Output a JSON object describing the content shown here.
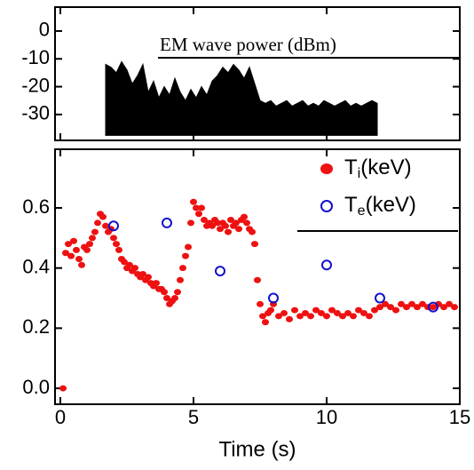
{
  "chart_data": [
    {
      "type": "area",
      "title": "EM wave power (dBm)",
      "color": "#000000",
      "x": [
        1.7,
        1.9,
        2.1,
        2.3,
        2.5,
        2.7,
        2.9,
        3.1,
        3.3,
        3.5,
        3.7,
        3.9,
        4.1,
        4.3,
        4.5,
        4.7,
        4.9,
        5.1,
        5.3,
        5.5,
        5.7,
        5.9,
        6.1,
        6.3,
        6.5,
        6.7,
        6.9,
        7.1,
        7.3,
        7.5,
        7.7,
        7.9,
        8.1,
        8.3,
        8.5,
        8.7,
        8.9,
        9.1,
        9.3,
        9.5,
        9.7,
        9.9,
        10.1,
        10.3,
        10.5,
        10.7,
        10.9,
        11.1,
        11.3,
        11.5,
        11.7,
        11.9
      ],
      "values": [
        -12,
        -13,
        -15,
        -11,
        -14,
        -19,
        -16,
        -12,
        -22,
        -18,
        -24,
        -20,
        -23,
        -17,
        -22,
        -25,
        -21,
        -24,
        -20,
        -23,
        -18,
        -16,
        -13,
        -15,
        -12,
        -14,
        -17,
        -13,
        -19,
        -25,
        -26,
        -25,
        -27,
        -26,
        -25,
        -27,
        -26,
        -25,
        -27,
        -26,
        -27,
        -25,
        -26,
        -27,
        -26,
        -25,
        -27,
        -26,
        -27,
        -26,
        -25,
        -26
      ],
      "base": -37.5,
      "xlim": [
        -0.2,
        15
      ],
      "ylim": [
        -39.3,
        8.6
      ],
      "yticks": [
        0,
        -10,
        -20,
        -30
      ]
    },
    {
      "type": "scatter",
      "xlabel": "Time (s)",
      "xlim": [
        -0.2,
        15
      ],
      "ylim": [
        -0.053,
        0.795
      ],
      "xticks": [
        0,
        5,
        10,
        15
      ],
      "yticks": [
        {
          "value": 0,
          "label": "0.0"
        },
        0.2,
        0.4,
        0.6
      ],
      "series": [
        {
          "name": "Ti(keV)",
          "color": "#ee1111",
          "marker": "filled",
          "x": [
            0.1,
            0.2,
            0.3,
            0.4,
            0.5,
            0.6,
            0.7,
            0.8,
            0.9,
            1.0,
            1.1,
            1.2,
            1.3,
            1.4,
            1.5,
            1.6,
            1.7,
            1.8,
            1.9,
            2.0,
            2.1,
            2.2,
            2.3,
            2.4,
            2.5,
            2.6,
            2.7,
            2.8,
            2.9,
            3.0,
            3.1,
            3.2,
            3.3,
            3.4,
            3.5,
            3.6,
            3.7,
            3.8,
            3.9,
            4.0,
            4.1,
            4.2,
            4.3,
            4.4,
            4.5,
            4.6,
            4.7,
            4.8,
            4.9,
            5.0,
            5.1,
            5.2,
            5.3,
            5.4,
            5.5,
            5.6,
            5.7,
            5.8,
            5.9,
            6.0,
            6.1,
            6.2,
            6.3,
            6.4,
            6.5,
            6.6,
            6.7,
            6.8,
            6.9,
            7.0,
            7.1,
            7.2,
            7.3,
            7.4,
            7.5,
            7.6,
            7.7,
            7.8,
            7.9,
            8.0,
            8.2,
            8.4,
            8.6,
            8.8,
            9.0,
            9.2,
            9.4,
            9.6,
            9.8,
            10.0,
            10.2,
            10.4,
            10.6,
            10.8,
            11.0,
            11.2,
            11.4,
            11.6,
            11.8,
            12.0,
            12.2,
            12.4,
            12.6,
            12.8,
            13.0,
            13.2,
            13.4,
            13.6,
            13.8,
            14.0,
            14.2,
            14.4,
            14.6,
            14.8
          ],
          "values": [
            0.0,
            0.45,
            0.48,
            0.44,
            0.49,
            0.46,
            0.43,
            0.41,
            0.47,
            0.46,
            0.48,
            0.5,
            0.52,
            0.55,
            0.58,
            0.57,
            0.54,
            0.52,
            0.53,
            0.5,
            0.48,
            0.46,
            0.43,
            0.42,
            0.4,
            0.41,
            0.39,
            0.4,
            0.38,
            0.37,
            0.38,
            0.36,
            0.37,
            0.35,
            0.34,
            0.35,
            0.33,
            0.33,
            0.32,
            0.3,
            0.28,
            0.29,
            0.3,
            0.32,
            0.36,
            0.4,
            0.44,
            0.47,
            0.55,
            0.62,
            0.6,
            0.58,
            0.6,
            0.56,
            0.54,
            0.55,
            0.54,
            0.56,
            0.55,
            0.53,
            0.55,
            0.54,
            0.52,
            0.56,
            0.54,
            0.55,
            0.53,
            0.56,
            0.57,
            0.55,
            0.53,
            0.52,
            0.48,
            0.36,
            0.28,
            0.24,
            0.22,
            0.25,
            0.26,
            0.28,
            0.24,
            0.25,
            0.23,
            0.26,
            0.24,
            0.25,
            0.24,
            0.26,
            0.25,
            0.24,
            0.26,
            0.25,
            0.24,
            0.25,
            0.24,
            0.26,
            0.25,
            0.24,
            0.26,
            0.27,
            0.28,
            0.27,
            0.26,
            0.28,
            0.27,
            0.28,
            0.27,
            0.28,
            0.27,
            0.27,
            0.28,
            0.27,
            0.28,
            0.27
          ]
        },
        {
          "name": "Te(keV)",
          "color": "#1111cc",
          "marker": "open",
          "x": [
            2,
            4,
            6,
            8,
            10,
            12,
            14
          ],
          "values": [
            0.54,
            0.55,
            0.39,
            0.3,
            0.41,
            0.3,
            0.27
          ]
        }
      ]
    }
  ]
}
